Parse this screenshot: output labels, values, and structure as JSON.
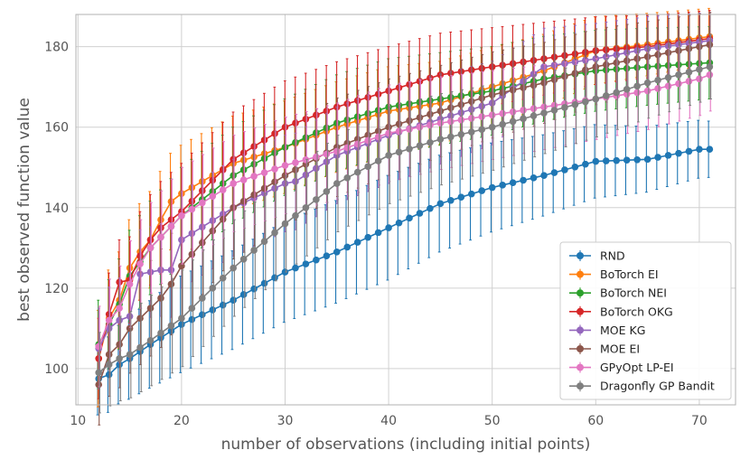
{
  "chart_data": {
    "type": "line",
    "title": "",
    "xlabel": "number of observations (including initial points)",
    "ylabel": "best observed function value",
    "xlim": [
      9.8,
      73.5
    ],
    "ylim": [
      91,
      188
    ],
    "xticks": [
      10,
      20,
      30,
      40,
      50,
      60,
      70
    ],
    "yticks": [
      100,
      120,
      140,
      160,
      180
    ],
    "grid": true,
    "legend_position": "bottom-right",
    "x_start": 12,
    "x_end": 71,
    "series": [
      {
        "name": "RND",
        "color": "#1f77b4",
        "anchors": [
          [
            12,
            97.5
          ],
          [
            13,
            98.5
          ],
          [
            14,
            101
          ],
          [
            15,
            102.5
          ],
          [
            17,
            106
          ],
          [
            20,
            111
          ],
          [
            25,
            117
          ],
          [
            30,
            124
          ],
          [
            35,
            129
          ],
          [
            40,
            135
          ],
          [
            45,
            141
          ],
          [
            50,
            145
          ],
          [
            55,
            148
          ],
          [
            60,
            151.5
          ],
          [
            65,
            152
          ],
          [
            70,
            154.5
          ],
          [
            71,
            154.5
          ]
        ],
        "err": [
          [
            12,
            9
          ],
          [
            20,
            12
          ],
          [
            40,
            13
          ],
          [
            71,
            7
          ]
        ]
      },
      {
        "name": "BoTorch EI",
        "color": "#ff7f0e",
        "anchors": [
          [
            12,
            102.5
          ],
          [
            13,
            112.5
          ],
          [
            14,
            117
          ],
          [
            15,
            125
          ],
          [
            16,
            129
          ],
          [
            17,
            132
          ],
          [
            18,
            137
          ],
          [
            19,
            141.5
          ],
          [
            20,
            143.5
          ],
          [
            25,
            151
          ],
          [
            30,
            155
          ],
          [
            35,
            160
          ],
          [
            40,
            164
          ],
          [
            45,
            166
          ],
          [
            50,
            170
          ],
          [
            55,
            174
          ],
          [
            60,
            179
          ],
          [
            65,
            180.5
          ],
          [
            71,
            182.5
          ]
        ],
        "err": [
          [
            12,
            12
          ],
          [
            20,
            12
          ],
          [
            40,
            11
          ],
          [
            71,
            7
          ]
        ]
      },
      {
        "name": "BoTorch NEI",
        "color": "#2ca02c",
        "anchors": [
          [
            12,
            106
          ],
          [
            13,
            111
          ],
          [
            14,
            116
          ],
          [
            15,
            123
          ],
          [
            17,
            130
          ],
          [
            20,
            138
          ],
          [
            25,
            148
          ],
          [
            30,
            155
          ],
          [
            35,
            161
          ],
          [
            40,
            165
          ],
          [
            45,
            167
          ],
          [
            50,
            169
          ],
          [
            55,
            172
          ],
          [
            60,
            174
          ],
          [
            65,
            175
          ],
          [
            71,
            176
          ]
        ],
        "err": [
          [
            12,
            11
          ],
          [
            20,
            12
          ],
          [
            40,
            12
          ],
          [
            71,
            9
          ]
        ]
      },
      {
        "name": "BoTorch OKG",
        "color": "#d62728",
        "anchors": [
          [
            12,
            102.5
          ],
          [
            13,
            113.5
          ],
          [
            14,
            121.5
          ],
          [
            15,
            122
          ],
          [
            16,
            128
          ],
          [
            17,
            132
          ],
          [
            18,
            135
          ],
          [
            20,
            139
          ],
          [
            25,
            152
          ],
          [
            30,
            160
          ],
          [
            35,
            165
          ],
          [
            40,
            169
          ],
          [
            45,
            173
          ],
          [
            50,
            175
          ],
          [
            55,
            177
          ],
          [
            60,
            179
          ],
          [
            65,
            180
          ],
          [
            71,
            182
          ]
        ],
        "err": [
          [
            12,
            10
          ],
          [
            20,
            12
          ],
          [
            40,
            11
          ],
          [
            71,
            7
          ]
        ]
      },
      {
        "name": "MOE KG",
        "color": "#9467bd",
        "anchors": [
          [
            12,
            105
          ],
          [
            13,
            110
          ],
          [
            14,
            112
          ],
          [
            15,
            113
          ],
          [
            16,
            123.5
          ],
          [
            17,
            124
          ],
          [
            18,
            124.5
          ],
          [
            19,
            124.5
          ],
          [
            20,
            132
          ],
          [
            25,
            140
          ],
          [
            30,
            146
          ],
          [
            31,
            146.5
          ],
          [
            35,
            153
          ],
          [
            40,
            158
          ],
          [
            45,
            162
          ],
          [
            50,
            166
          ],
          [
            55,
            175
          ],
          [
            60,
            177
          ],
          [
            65,
            179.5
          ],
          [
            71,
            181.5
          ]
        ],
        "err": [
          [
            12,
            10
          ],
          [
            20,
            12
          ],
          [
            40,
            12
          ],
          [
            71,
            7
          ]
        ]
      },
      {
        "name": "MOE EI",
        "color": "#8c564b",
        "anchors": [
          [
            12,
            96
          ],
          [
            13,
            103.5
          ],
          [
            14,
            106
          ],
          [
            15,
            110
          ],
          [
            17,
            115
          ],
          [
            18,
            117.5
          ],
          [
            19,
            121
          ],
          [
            20,
            125.5
          ],
          [
            25,
            140
          ],
          [
            30,
            148
          ],
          [
            35,
            155
          ],
          [
            40,
            160
          ],
          [
            45,
            164
          ],
          [
            50,
            168
          ],
          [
            55,
            171
          ],
          [
            60,
            175
          ],
          [
            65,
            177.5
          ],
          [
            71,
            180.5
          ]
        ],
        "err": [
          [
            12,
            10
          ],
          [
            20,
            13
          ],
          [
            40,
            12
          ],
          [
            71,
            8
          ]
        ]
      },
      {
        "name": "GPyOpt LP-EI",
        "color": "#e377c2",
        "anchors": [
          [
            12,
            105.5
          ],
          [
            13,
            112
          ],
          [
            14,
            115
          ],
          [
            15,
            121
          ],
          [
            16,
            126
          ],
          [
            17,
            130
          ],
          [
            20,
            138
          ],
          [
            25,
            146
          ],
          [
            30,
            150.5
          ],
          [
            35,
            154
          ],
          [
            40,
            158.5
          ],
          [
            45,
            161
          ],
          [
            50,
            163
          ],
          [
            55,
            165
          ],
          [
            60,
            167
          ],
          [
            65,
            169
          ],
          [
            70,
            172
          ],
          [
            71,
            173
          ]
        ],
        "err": [
          [
            12,
            10
          ],
          [
            20,
            12
          ],
          [
            40,
            12
          ],
          [
            71,
            9
          ]
        ]
      },
      {
        "name": "Dragonfly GP Bandit",
        "color": "#7f7f7f",
        "anchors": [
          [
            12,
            99
          ],
          [
            13,
            101
          ],
          [
            14,
            102.5
          ],
          [
            15,
            103.5
          ],
          [
            17,
            107
          ],
          [
            20,
            112.5
          ],
          [
            25,
            125
          ],
          [
            30,
            136
          ],
          [
            35,
            146
          ],
          [
            40,
            153
          ],
          [
            45,
            157
          ],
          [
            50,
            160
          ],
          [
            55,
            163.5
          ],
          [
            60,
            167
          ],
          [
            65,
            171
          ],
          [
            71,
            175
          ]
        ],
        "err": [
          [
            12,
            10
          ],
          [
            20,
            12
          ],
          [
            40,
            12
          ],
          [
            71,
            8
          ]
        ]
      }
    ]
  }
}
